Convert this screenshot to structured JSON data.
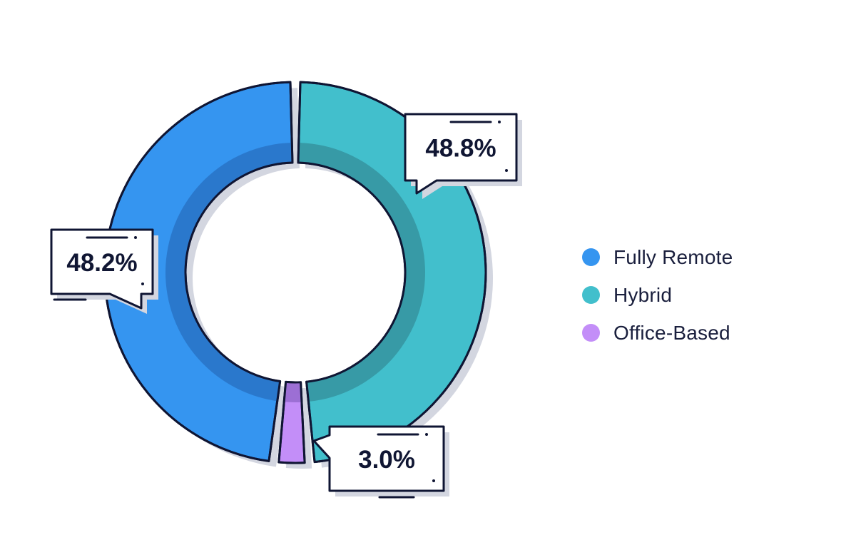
{
  "chart_data": {
    "type": "pie",
    "categories": [
      "Fully Remote",
      "Hybrid",
      "Office-Based"
    ],
    "values": [
      48.2,
      48.8,
      3.0
    ],
    "data_labels": [
      "48.2%",
      "48.8%",
      "3.0%"
    ],
    "colors": [
      "#3595f0",
      "#42bfcc",
      "#c38ef8"
    ],
    "dark_colors": [
      "#2a78cc",
      "#379aa6",
      "#9c6fd4"
    ],
    "legend_position": "right",
    "donut": true
  },
  "legend": {
    "items": [
      {
        "label": "Fully Remote",
        "color": "#3595f0"
      },
      {
        "label": "Hybrid",
        "color": "#42bfcc"
      },
      {
        "label": "Office-Based",
        "color": "#c38ef8"
      }
    ]
  }
}
